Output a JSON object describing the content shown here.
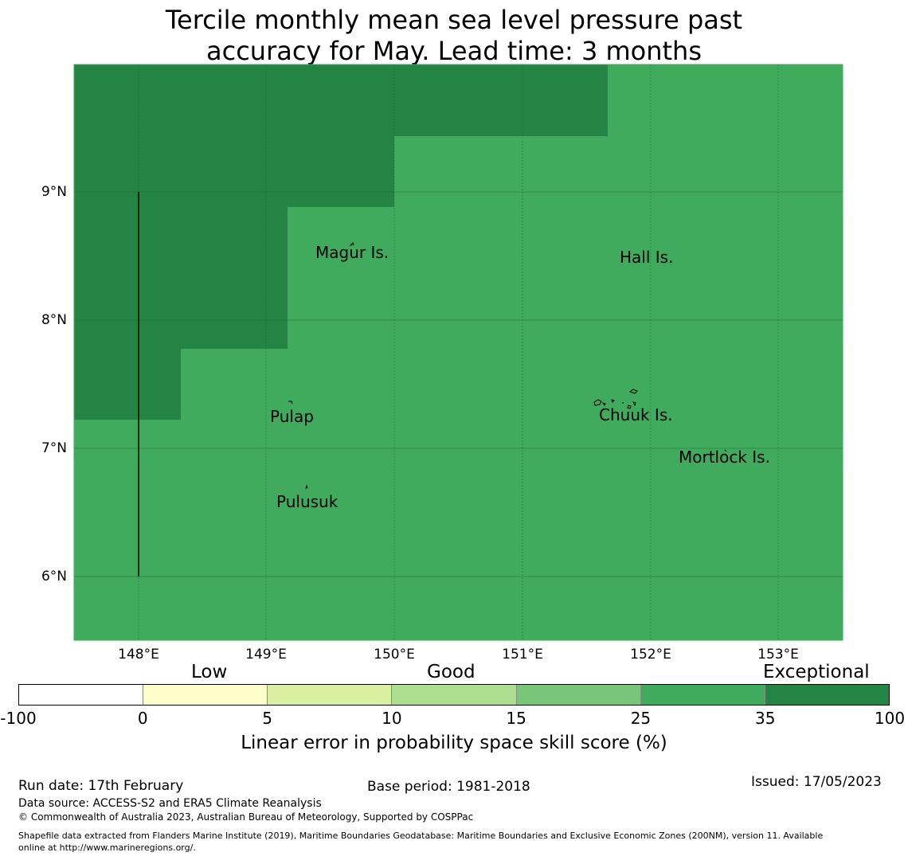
{
  "title": {
    "line1": "Tercile monthly mean sea level pressure past",
    "line2": "accuracy for May. Lead time: 3 months"
  },
  "map": {
    "lat_labels": [
      "9°N",
      "8°N",
      "7°N",
      "6°N"
    ],
    "lon_labels": [
      "148°E",
      "149°E",
      "150°E",
      "151°E",
      "152°E",
      "153°E"
    ],
    "extent": {
      "lon_min": 147.5,
      "lon_max": 153.5,
      "lat_min": 5.5,
      "lat_max": 10.0
    },
    "fill_colors": {
      "good": "#41ab5d",
      "exceptional": "#238443"
    },
    "places": {
      "magur": "Magur Is.",
      "hall": "Hall Is.",
      "pulap": "Pulap",
      "chuuk": "Chuuk Is.",
      "mortlock": "Mortlock Is.",
      "pulusuk": "Pulusuk"
    }
  },
  "colorbar": {
    "categories": {
      "low": "Low",
      "good": "Good",
      "exceptional": "Exceptional"
    },
    "ticks": [
      "-100",
      "0",
      "5",
      "10",
      "15",
      "25",
      "35",
      "100"
    ],
    "colors": [
      "#ffffff",
      "#ffffcc",
      "#d9f0a3",
      "#addd8e",
      "#78c679",
      "#41ab5d",
      "#238443"
    ],
    "label": "Linear error in probability space skill score (%)"
  },
  "footer": {
    "run_date": "Run date: 17th February",
    "base_period": "Base period: 1981-2018",
    "issued": "Issued: 17/05/2023",
    "data_source": "Data source: ACCESS-S2 and ERA5 Climate Reanalysis",
    "copyright": "© Commonwealth of Australia 2023, Australian Bureau of Meteorology, Supported by COSPPac",
    "shapefile_line1": "Shapefile data extracted from Flanders Marine Institute (2019), Maritime Boundaries Geodatabase: Maritime Boundaries and Exclusive Economic Zones (200NM), version 11. Available",
    "shapefile_line2": "online at http://www.marineregions.org/."
  }
}
